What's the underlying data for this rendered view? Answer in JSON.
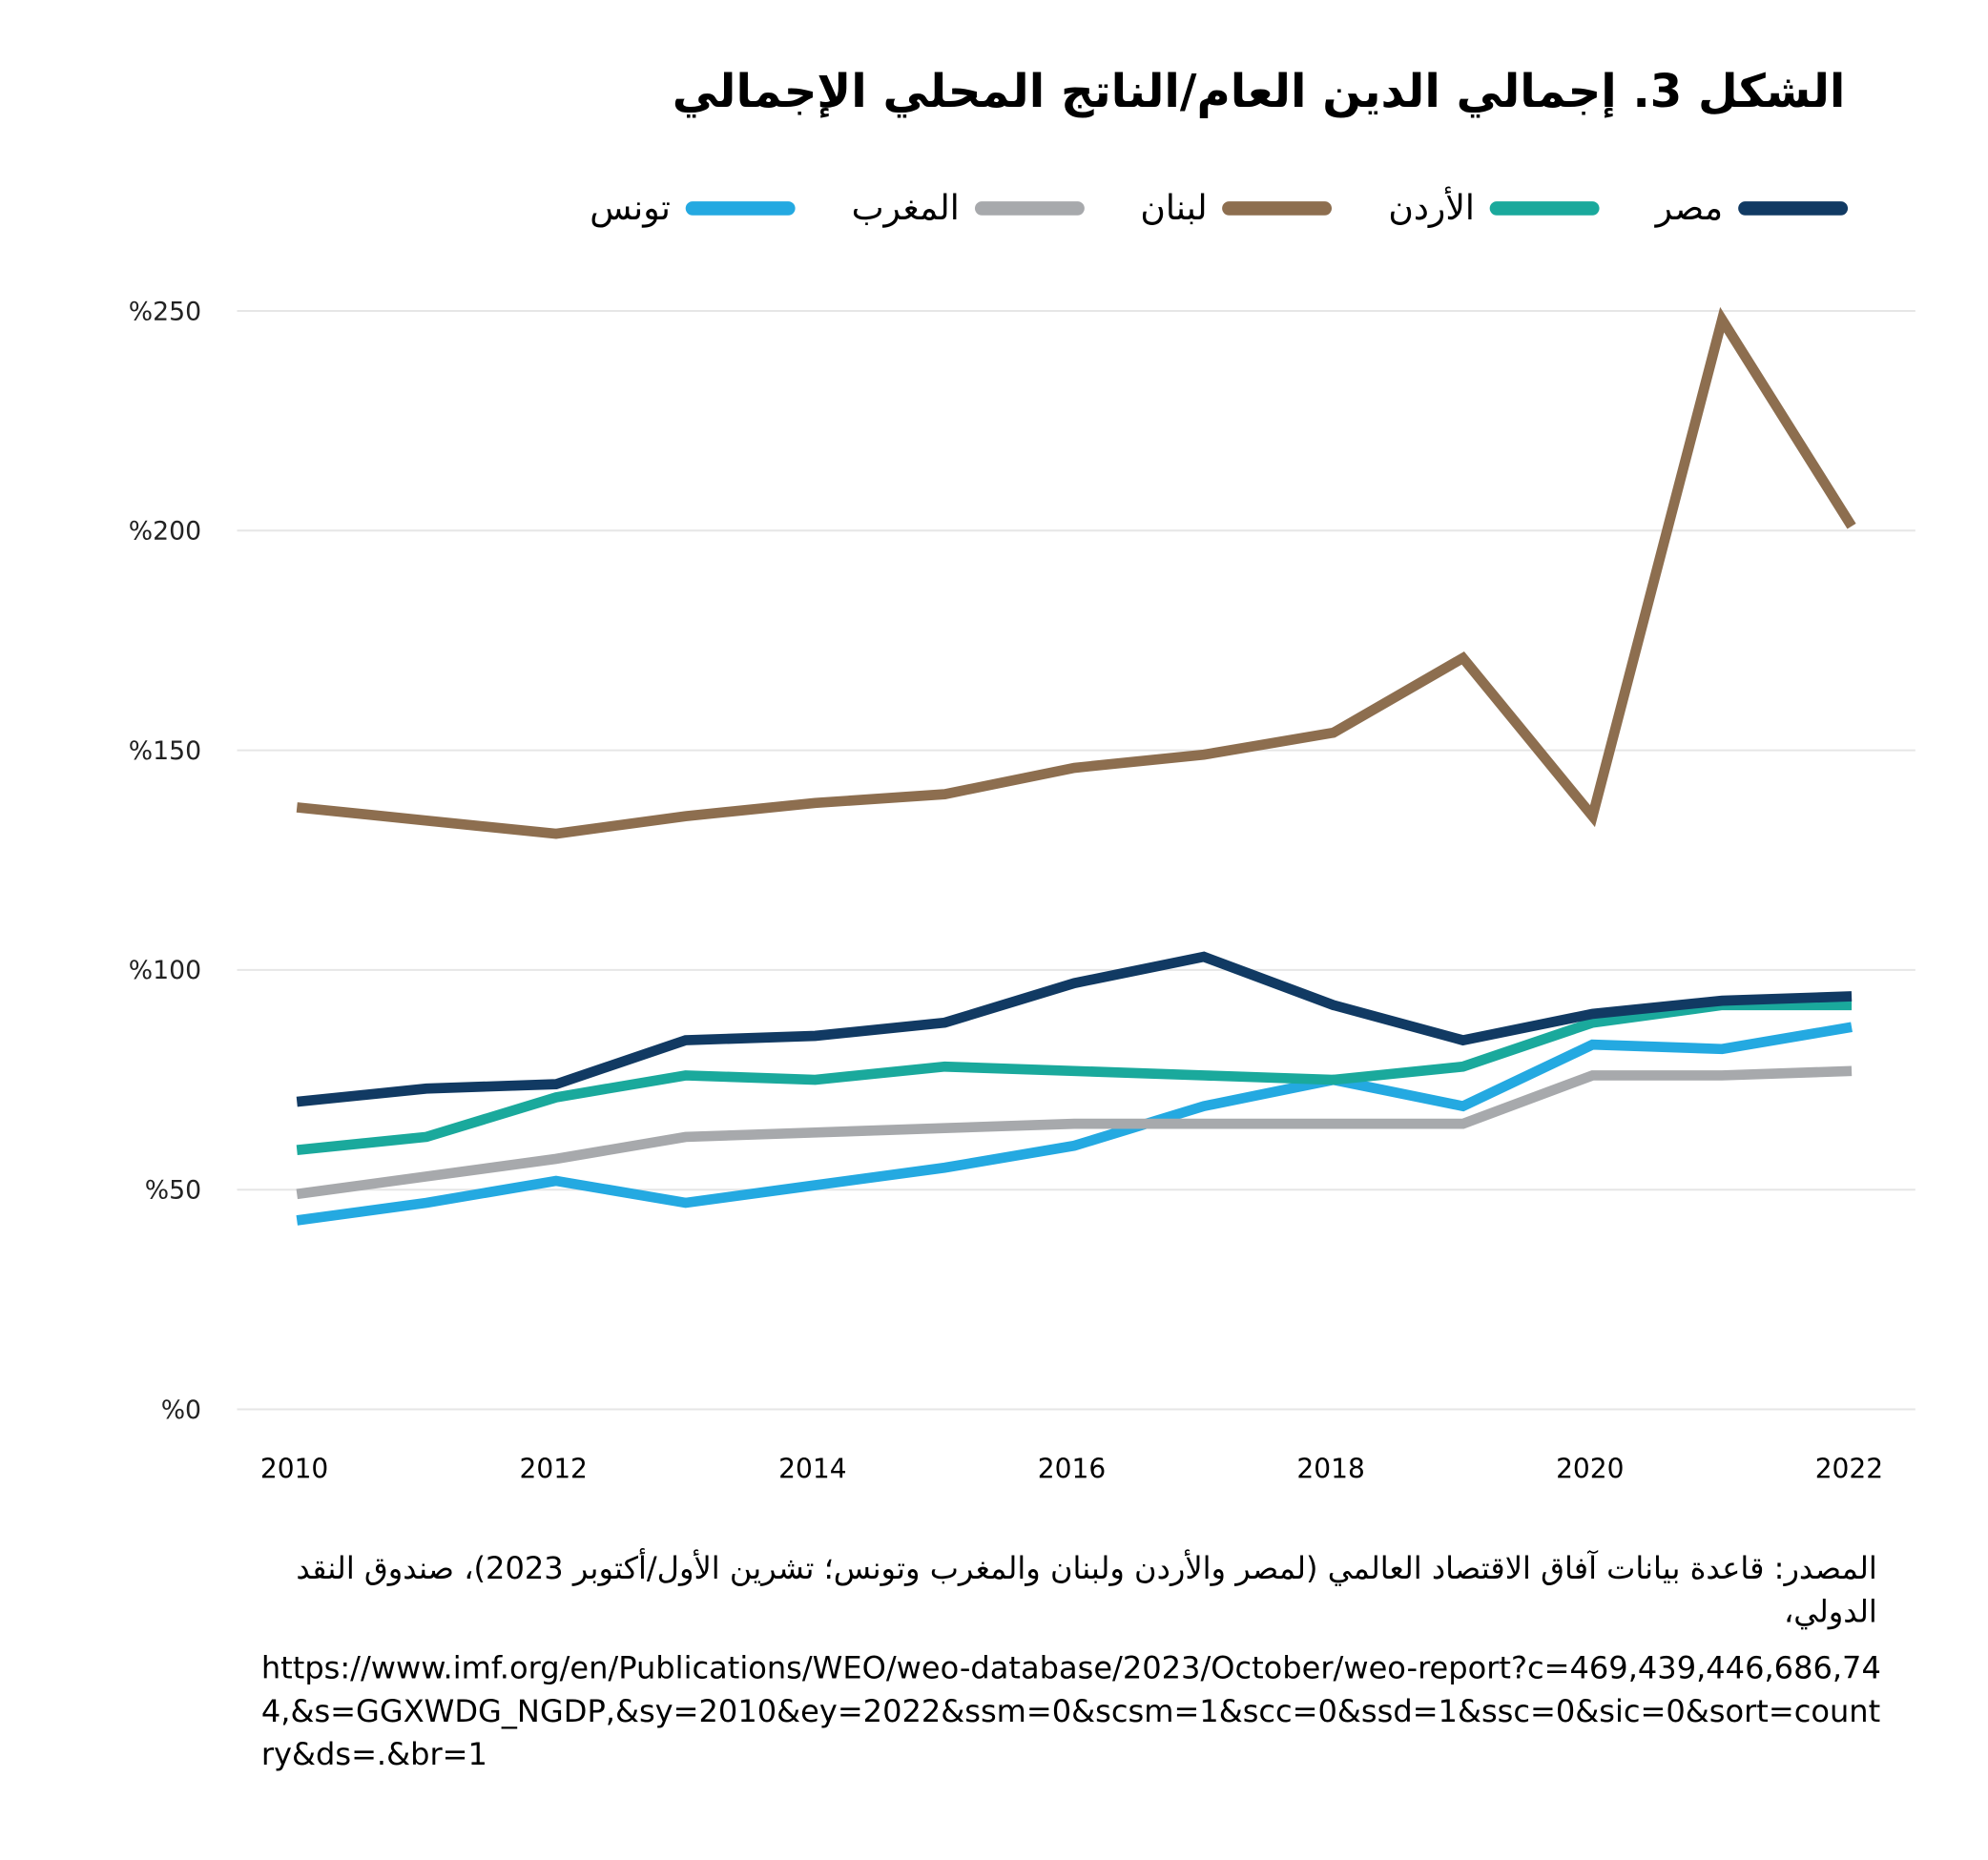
{
  "title": "الشكل 3. إجمالي الدين العام/الناتج المحلي الإجمالي",
  "source": "المصدر: قاعدة بيانات آفاق الاقتصاد العالمي (لمصر والأردن ولبنان والمغرب وتونس؛ تشرين الأول/أكتوبر 2023)، صندوق النقد الدولي،",
  "url": "https://www.imf.org/en/Publications/WEO/weo-database/2023/October/weo-report?c=469,439,446,686,744,&s=GGXWDG_NGDP,&sy=2010&ey=2022&ssm=0&scsm=1&scc=0&ssd=1&ssc=0&sic=0&sort=country&ds=.&br=1",
  "chart_data": {
    "type": "line",
    "title": "الشكل 3. إجمالي الدين العام/الناتج المحلي الإجمالي",
    "x": [
      2010,
      2011,
      2012,
      2013,
      2014,
      2015,
      2016,
      2017,
      2018,
      2019,
      2020,
      2021,
      2022
    ],
    "x_tick_labels": [
      "2010",
      "2012",
      "2014",
      "2016",
      "2018",
      "2020",
      "2022"
    ],
    "y_tick_labels": [
      "%0",
      "%50",
      "%100",
      "%150",
      "%200",
      "%250"
    ],
    "y_ticks": [
      0,
      50,
      100,
      150,
      200,
      250
    ],
    "ylim": [
      0,
      250
    ],
    "grid": "horizontal",
    "legend_position": "top",
    "series": [
      {
        "name": "مصر",
        "color": "#113a63",
        "values": [
          70,
          73,
          74,
          84,
          85,
          88,
          97,
          103,
          92,
          84,
          90,
          93,
          94
        ]
      },
      {
        "name": "الأردن",
        "color": "#1aa99c",
        "values": [
          59,
          62,
          71,
          76,
          75,
          78,
          77,
          76,
          75,
          78,
          88,
          92,
          92
        ]
      },
      {
        "name": "لبنان",
        "color": "#8d6e4f",
        "values": [
          137,
          134,
          131,
          135,
          138,
          140,
          146,
          149,
          154,
          171,
          135,
          248,
          201
        ]
      },
      {
        "name": "المغرب",
        "color": "#a7a9ac",
        "values": [
          49,
          53,
          57,
          62,
          63,
          64,
          65,
          65,
          65,
          65,
          76,
          76,
          77
        ]
      },
      {
        "name": "تونس",
        "color": "#24a9e1",
        "values": [
          43,
          47,
          52,
          47,
          51,
          55,
          60,
          69,
          75,
          69,
          83,
          82,
          87
        ]
      }
    ]
  }
}
